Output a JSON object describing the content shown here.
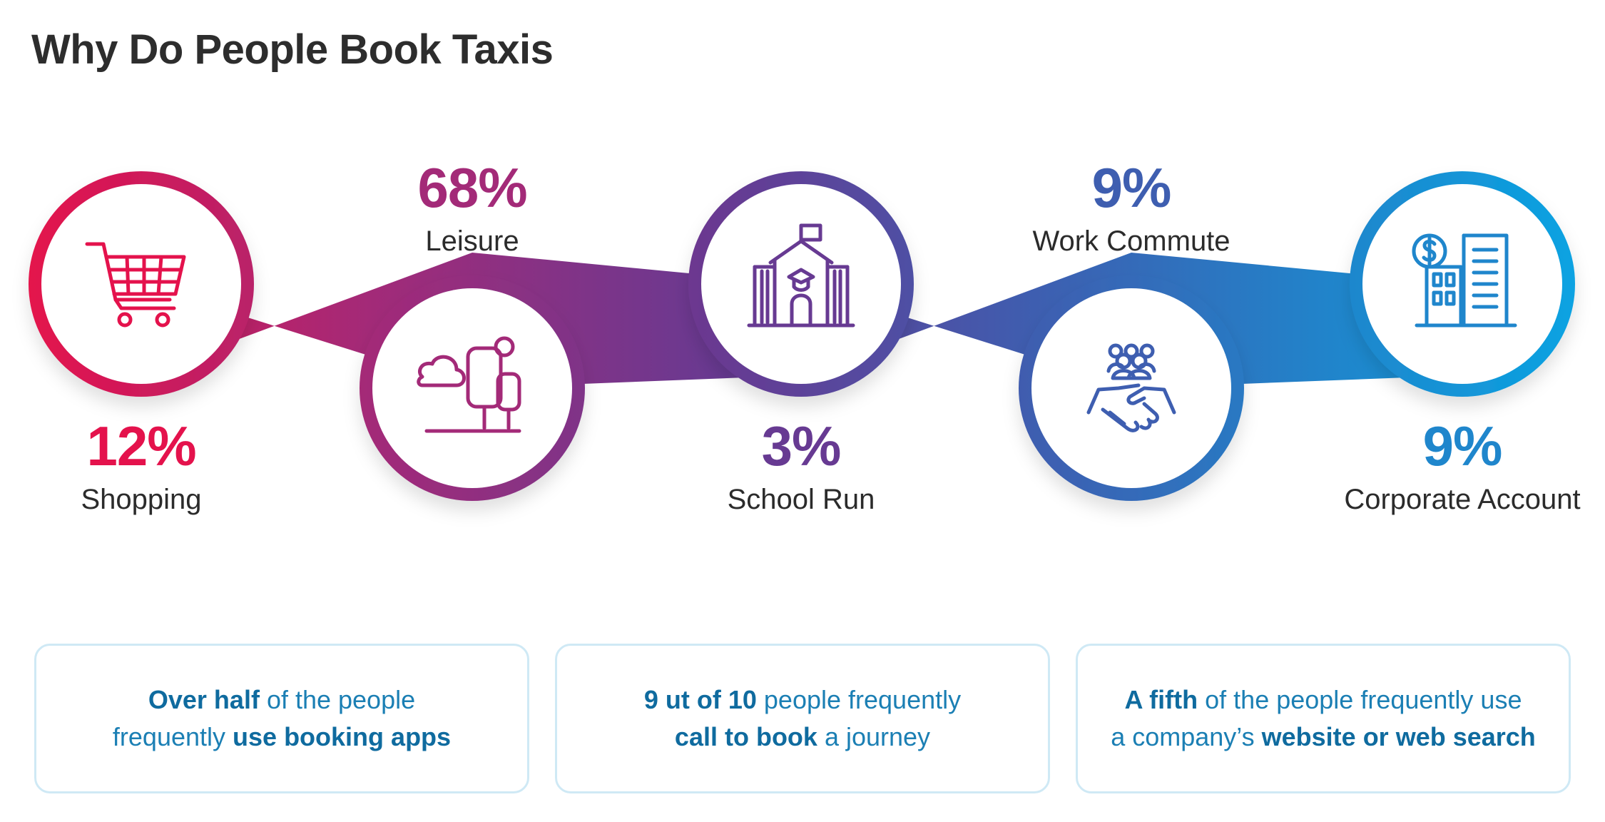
{
  "title": "Why Do People Book Taxis",
  "colors": {
    "gradient": [
      "#e4124c",
      "#a32a78",
      "#673a92",
      "#3e5eb0",
      "#1f86cc",
      "#0aa3e2"
    ],
    "box_border": "#cfe9f5",
    "box_text": "#1b7fb4"
  },
  "categories": [
    {
      "label": "Shopping",
      "value": "12%",
      "icon": "shopping-cart-icon",
      "color": "#e4124c"
    },
    {
      "label": "Leisure",
      "value": "68%",
      "icon": "park-tree-icon",
      "color": "#a32a78"
    },
    {
      "label": "School Run",
      "value": "3%",
      "icon": "school-building-icon",
      "color": "#673a92"
    },
    {
      "label": "Work Commute",
      "value": "9%",
      "icon": "handshake-team-icon",
      "color": "#3e5eb0"
    },
    {
      "label": "Corporate Account",
      "value": "9%",
      "icon": "corporate-building-icon",
      "color": "#1f86cc"
    }
  ],
  "info_boxes": [
    {
      "line1": [
        {
          "t": "Over half",
          "b": true
        },
        {
          "t": " of the people",
          "b": false
        }
      ],
      "line2": [
        {
          "t": "frequently ",
          "b": false
        },
        {
          "t": "use booking apps",
          "b": true
        }
      ]
    },
    {
      "line1": [
        {
          "t": "9 ut of 10",
          "b": true
        },
        {
          "t": " people frequently",
          "b": false
        }
      ],
      "line2": [
        {
          "t": "call to book",
          "b": true
        },
        {
          "t": " a journey",
          "b": false
        }
      ]
    },
    {
      "line1": [
        {
          "t": "A fifth",
          "b": true
        },
        {
          "t": " of the people frequently use",
          "b": false
        }
      ],
      "line2": [
        {
          "t": "a company’s ",
          "b": false
        },
        {
          "t": "website or web search",
          "b": true
        }
      ]
    }
  ]
}
